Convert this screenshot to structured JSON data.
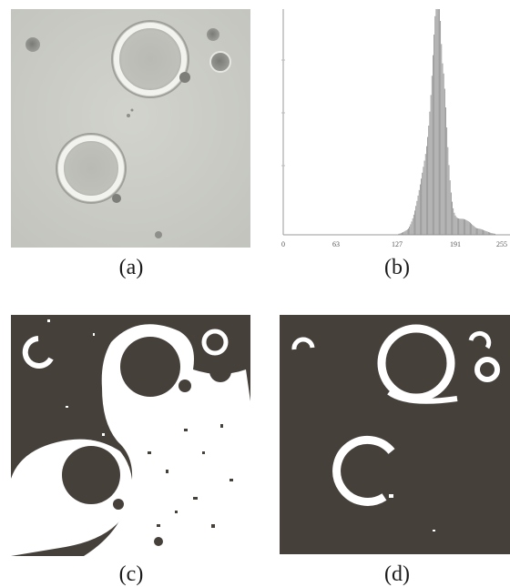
{
  "captions": {
    "a": "(a)",
    "b": "(b)",
    "c": "(c)",
    "d": "(d)"
  },
  "histogram": {
    "ticks": [
      "0",
      "63",
      "127",
      "191",
      "255"
    ]
  },
  "colors": {
    "micrograph_bg": "#c9cac4",
    "binary_dark": "#46403b",
    "binary_light": "#ffffff",
    "hist_bar": "#888888"
  }
}
